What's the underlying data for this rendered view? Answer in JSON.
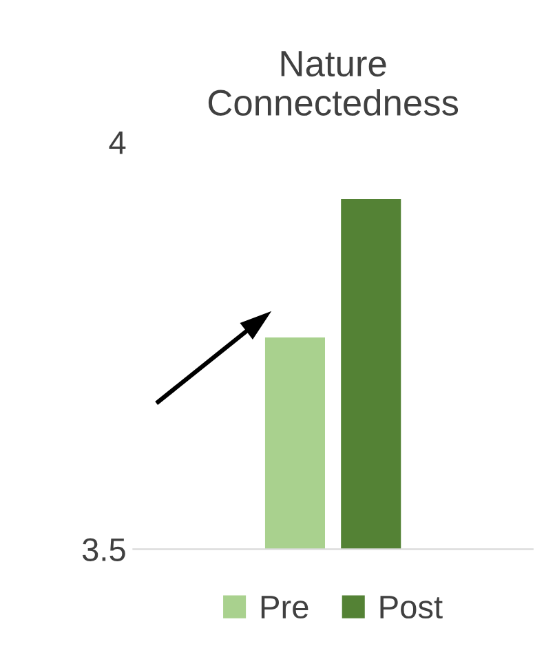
{
  "chart_data": {
    "type": "bar",
    "title": "Nature\nConnectedness",
    "categories": [
      null
    ],
    "series": [
      {
        "name": "Pre",
        "color": "#a9d18e",
        "values": [
          3.76
        ]
      },
      {
        "name": "Post",
        "color": "#548235",
        "values": [
          3.93
        ]
      }
    ],
    "ylim": [
      3.5,
      4
    ],
    "yticks": [
      3.5,
      4
    ],
    "grid": false,
    "legend": "bottom"
  }
}
